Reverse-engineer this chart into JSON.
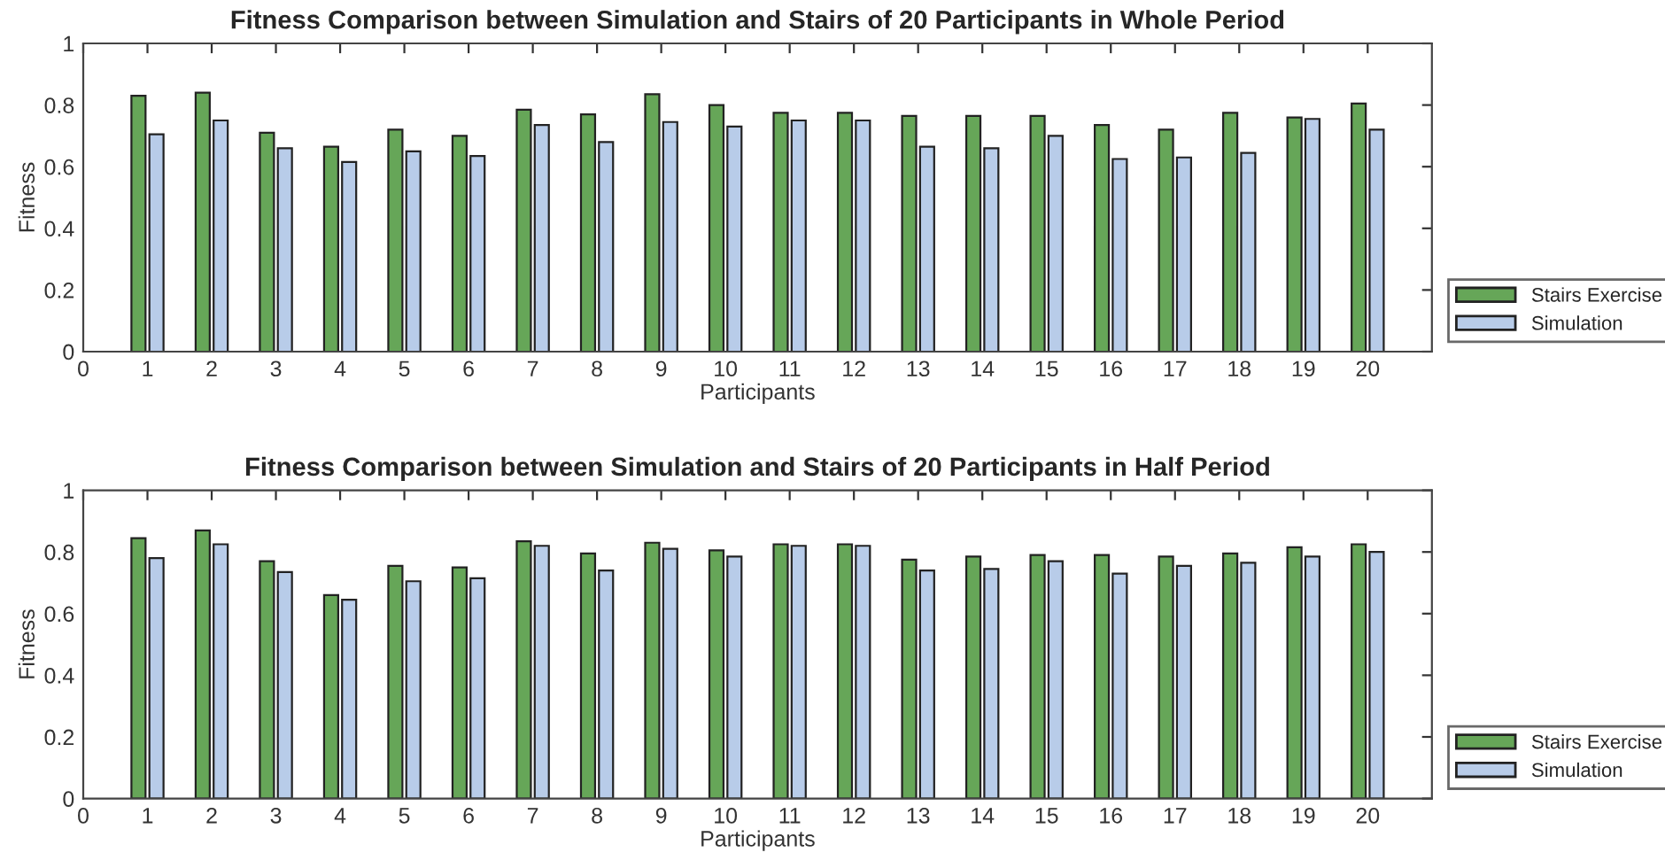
{
  "chart_data": [
    {
      "type": "bar",
      "title": "Fitness Comparison between Simulation and Stairs of 20 Participants in Whole Period",
      "xlabel": "Participants",
      "ylabel": "Fitness",
      "x": [
        1,
        2,
        3,
        4,
        5,
        6,
        7,
        8,
        9,
        10,
        11,
        12,
        13,
        14,
        15,
        16,
        17,
        18,
        19,
        20
      ],
      "xlim": [
        0,
        21
      ],
      "xticks": [
        0,
        1,
        2,
        3,
        4,
        5,
        6,
        7,
        8,
        9,
        10,
        11,
        12,
        13,
        14,
        15,
        16,
        17,
        18,
        19,
        20
      ],
      "ylim": [
        0,
        1
      ],
      "yticks": [
        0,
        0.2,
        0.4,
        0.6,
        0.8,
        1
      ],
      "grid": false,
      "legend": "bottom right",
      "series": [
        {
          "name": "Stairs Exercise",
          "color": "#66a658",
          "values": [
            0.83,
            0.84,
            0.71,
            0.665,
            0.72,
            0.7,
            0.785,
            0.77,
            0.835,
            0.8,
            0.775,
            0.775,
            0.765,
            0.765,
            0.765,
            0.735,
            0.72,
            0.775,
            0.76,
            0.805
          ]
        },
        {
          "name": "Simulation",
          "color": "#b8cce9",
          "values": [
            0.705,
            0.75,
            0.66,
            0.615,
            0.65,
            0.635,
            0.735,
            0.68,
            0.745,
            0.73,
            0.75,
            0.75,
            0.665,
            0.66,
            0.7,
            0.625,
            0.63,
            0.645,
            0.755,
            0.72
          ]
        }
      ]
    },
    {
      "type": "bar",
      "title": "Fitness Comparison between Simulation and Stairs of 20 Participants in Half Period",
      "xlabel": "Participants",
      "ylabel": "Fitness",
      "x": [
        1,
        2,
        3,
        4,
        5,
        6,
        7,
        8,
        9,
        10,
        11,
        12,
        13,
        14,
        15,
        16,
        17,
        18,
        19,
        20
      ],
      "xlim": [
        0,
        21
      ],
      "xticks": [
        0,
        1,
        2,
        3,
        4,
        5,
        6,
        7,
        8,
        9,
        10,
        11,
        12,
        13,
        14,
        15,
        16,
        17,
        18,
        19,
        20
      ],
      "ylim": [
        0,
        1
      ],
      "yticks": [
        0,
        0.2,
        0.4,
        0.6,
        0.8,
        1
      ],
      "grid": false,
      "legend": "bottom right",
      "series": [
        {
          "name": "Stairs Exercise",
          "color": "#66a658",
          "values": [
            0.845,
            0.87,
            0.77,
            0.66,
            0.755,
            0.75,
            0.835,
            0.795,
            0.83,
            0.805,
            0.825,
            0.825,
            0.775,
            0.785,
            0.79,
            0.79,
            0.785,
            0.795,
            0.815,
            0.825
          ]
        },
        {
          "name": "Simulation",
          "color": "#b8cce9",
          "values": [
            0.78,
            0.825,
            0.735,
            0.645,
            0.705,
            0.715,
            0.82,
            0.74,
            0.81,
            0.785,
            0.82,
            0.82,
            0.74,
            0.745,
            0.77,
            0.73,
            0.755,
            0.765,
            0.785,
            0.8
          ]
        }
      ]
    }
  ]
}
